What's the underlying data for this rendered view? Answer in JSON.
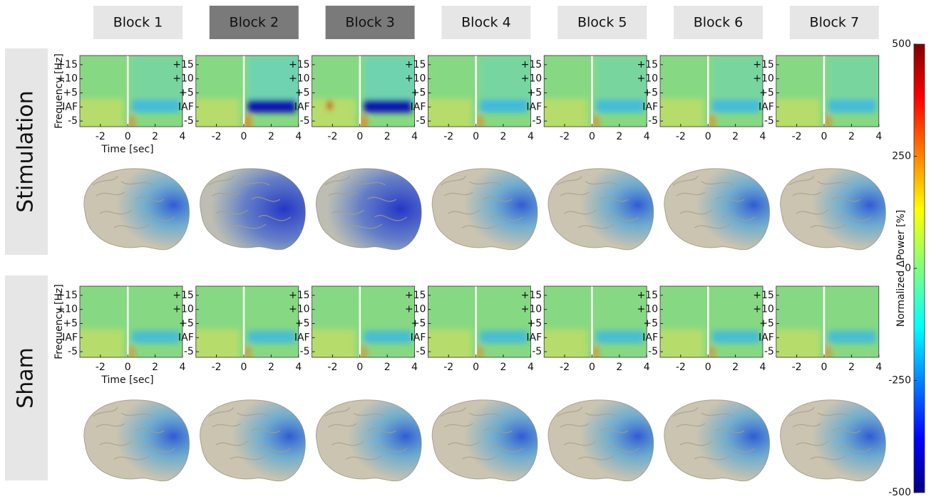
{
  "blocks": {
    "labels": [
      "Block 1",
      "Block 2",
      "Block 3",
      "Block 4",
      "Block 5",
      "Block 6",
      "Block 7"
    ],
    "highlighted": [
      false,
      true,
      true,
      false,
      false,
      false,
      false
    ]
  },
  "conditions": [
    "Stimulation",
    "Sham"
  ],
  "spectrogram": {
    "ylabel": "Frequency [Hz]",
    "xlabel": "Time [sec]",
    "xlim": [
      -3.5,
      4
    ],
    "xticks": [
      -2,
      0,
      2,
      4
    ],
    "ylim": [
      -7,
      18.25
    ],
    "yticks": [
      {
        "value": 15,
        "label": "+15"
      },
      {
        "value": 10,
        "label": "+10"
      },
      {
        "value": 5,
        "label": "+5"
      },
      {
        "value": 0,
        "label": "IAF"
      },
      -5
    ]
  },
  "colorbar": {
    "label": "Normalized ΔPower [%]",
    "lim": [
      -500,
      500
    ],
    "ticks": [
      500,
      250,
      0,
      -250,
      -500
    ]
  }
}
